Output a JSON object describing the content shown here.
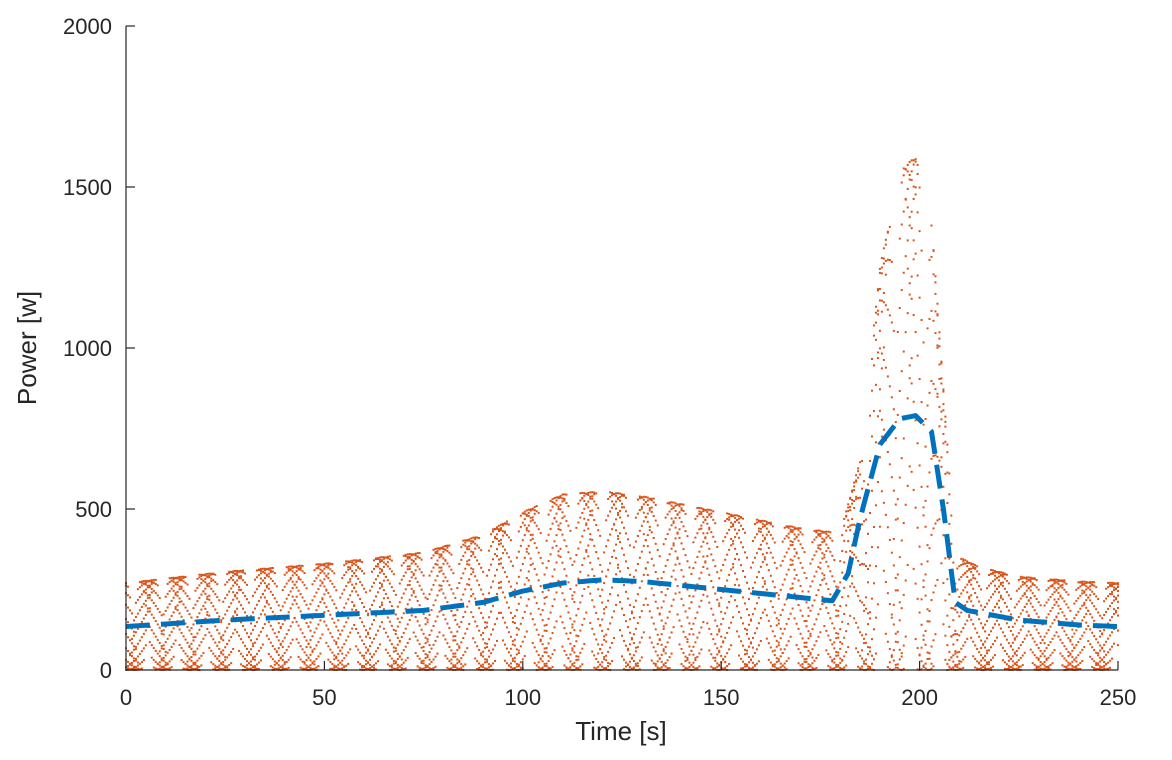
{
  "chart_data": {
    "type": "scatter",
    "title": "",
    "xlabel": "Time [s]",
    "ylabel": "Power [w]",
    "xlim": [
      0,
      250
    ],
    "ylim": [
      0,
      2000
    ],
    "xticks": [
      0,
      50,
      100,
      150,
      200,
      250
    ],
    "yticks": [
      0,
      500,
      1000,
      1500,
      2000
    ],
    "xtick_labels": [
      "0",
      "50",
      "100",
      "150",
      "200",
      "250"
    ],
    "ytick_labels": [
      "0",
      "500",
      "1000",
      "1500",
      "2000"
    ],
    "grid": false,
    "legend": "none",
    "series": [
      {
        "kind": "scatter",
        "color": "#D95319",
        "description_points_t_step": 0.5,
        "envelope_max": {
          "x": [
            0,
            25,
            50,
            75,
            90,
            100,
            110,
            120,
            130,
            150,
            170,
            180,
            185,
            190,
            195,
            199,
            203,
            207,
            210,
            215,
            225,
            240,
            250
          ],
          "y": [
            270,
            305,
            330,
            365,
            420,
            490,
            545,
            555,
            540,
            490,
            440,
            425,
            650,
            1250,
            1550,
            1595,
            1400,
            700,
            350,
            320,
            290,
            275,
            270
          ]
        },
        "rows": 9
      },
      {
        "kind": "line",
        "style": "dashed",
        "color": "#0072BD",
        "x": [
          0,
          25,
          50,
          75,
          90,
          100,
          110,
          120,
          130,
          150,
          170,
          178,
          182,
          185,
          190,
          195,
          199,
          203,
          206,
          209,
          212,
          225,
          240,
          250
        ],
        "y": [
          135,
          155,
          170,
          185,
          210,
          245,
          270,
          280,
          275,
          250,
          225,
          215,
          300,
          470,
          700,
          780,
          790,
          740,
          500,
          210,
          185,
          155,
          140,
          135
        ]
      }
    ]
  }
}
